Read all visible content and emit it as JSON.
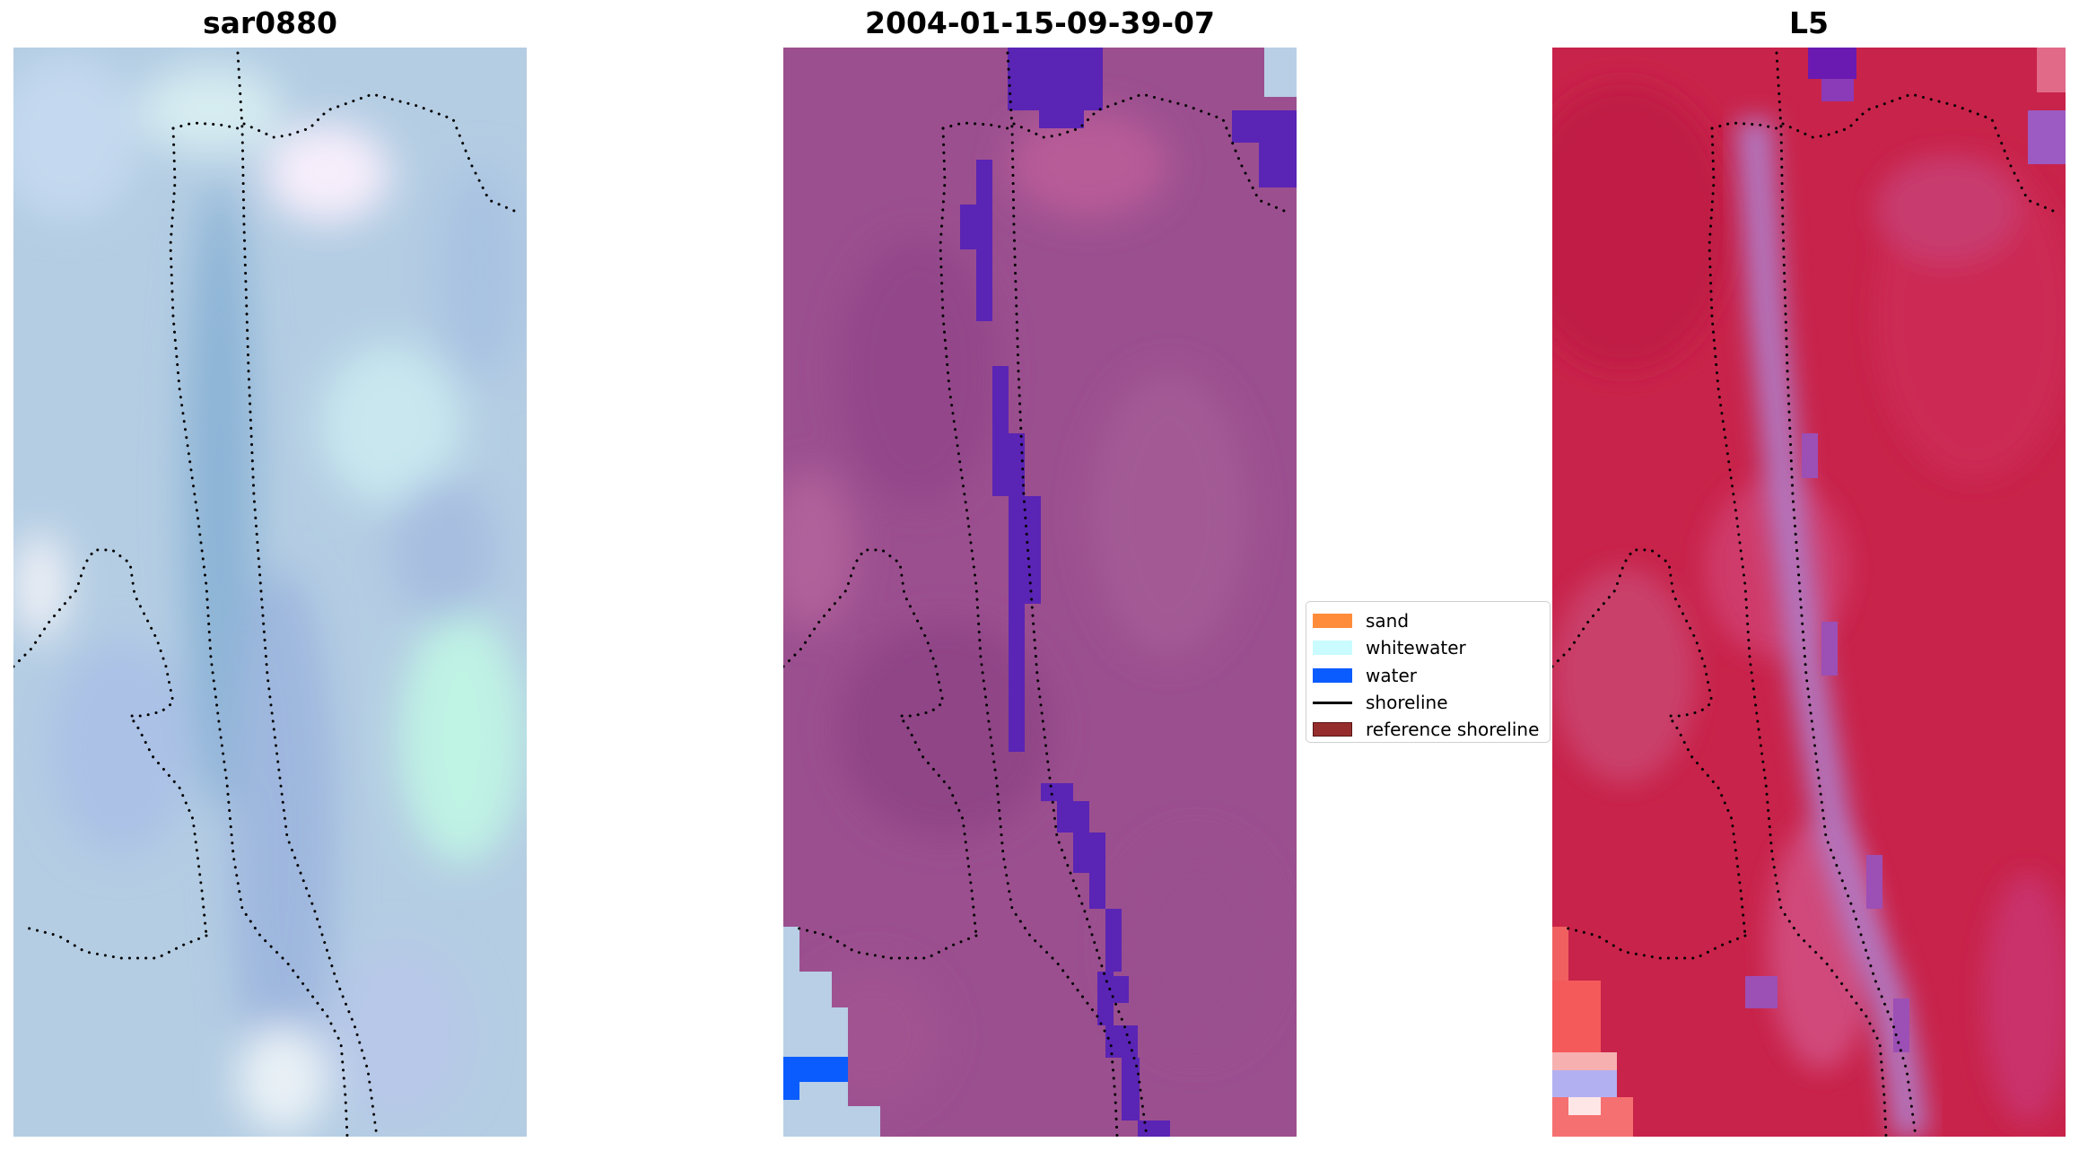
{
  "panels": {
    "left": {
      "title": "sar0880"
    },
    "center": {
      "title": "2004-01-15-09-39-07"
    },
    "right": {
      "title": "L5"
    }
  },
  "legend": {
    "items": [
      {
        "label": "sand",
        "kind": "patch",
        "color": "#ff8c3a"
      },
      {
        "label": "whitewater",
        "kind": "patch",
        "color": "#c9fbff"
      },
      {
        "label": "water",
        "kind": "patch",
        "color": "#0a5cff"
      },
      {
        "label": "shoreline",
        "kind": "line",
        "color": "#000000"
      },
      {
        "label": "reference shoreline",
        "kind": "patch",
        "color": "#962d2d"
      }
    ]
  },
  "colors": {
    "left_base": "#b4cde3",
    "center_base": "#9b4f8f",
    "right_base": "#c8234a",
    "water_class": "#5a24b5",
    "dots": "#000000"
  }
}
